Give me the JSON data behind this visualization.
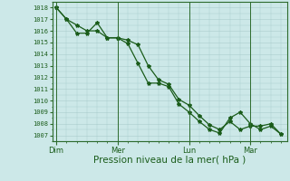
{
  "title": "Pression niveau de la mer( hPa )",
  "ylabel_values": [
    1007,
    1008,
    1009,
    1010,
    1011,
    1012,
    1013,
    1014,
    1015,
    1016,
    1017,
    1018
  ],
  "ylim": [
    1006.5,
    1018.5
  ],
  "background_color": "#cce8e8",
  "grid_color": "#aacccc",
  "line_color": "#1a5c1a",
  "marker_color": "#1a5c1a",
  "xtick_labels": [
    "Dim",
    "Mer",
    "Lun",
    "Mar"
  ],
  "xtick_positions": [
    0,
    3.0,
    6.5,
    9.5
  ],
  "line1_x": [
    0,
    0.5,
    1.0,
    1.5,
    2.0,
    2.5,
    3.0,
    3.5,
    4.0,
    4.5,
    5.0,
    5.5,
    6.0,
    6.5,
    7.0,
    7.5,
    8.0,
    8.5,
    9.0,
    9.5,
    10.0,
    10.5,
    11.0
  ],
  "line1_y": [
    1018,
    1017.0,
    1015.8,
    1015.8,
    1016.7,
    1015.4,
    1015.4,
    1014.9,
    1013.2,
    1011.5,
    1011.5,
    1011.2,
    1009.7,
    1009.0,
    1008.2,
    1007.5,
    1007.2,
    1008.5,
    1009.0,
    1008.0,
    1007.5,
    1007.8,
    1007.1
  ],
  "line2_x": [
    0,
    0.5,
    1.0,
    1.5,
    2.0,
    2.5,
    3.0,
    3.5,
    4.0,
    4.5,
    5.0,
    5.5,
    6.0,
    6.5,
    7.0,
    7.5,
    8.0,
    8.5,
    9.0,
    9.5,
    10.0,
    10.5,
    11.0
  ],
  "line2_y": [
    1018,
    1017.0,
    1016.5,
    1016.0,
    1016.0,
    1015.4,
    1015.4,
    1015.2,
    1014.8,
    1013.0,
    1011.8,
    1011.4,
    1010.1,
    1009.6,
    1008.7,
    1007.9,
    1007.5,
    1008.2,
    1007.5,
    1007.8,
    1007.8,
    1008.0,
    1007.1
  ],
  "vline_positions": [
    0,
    3.0,
    6.5,
    9.5
  ],
  "vline_color": "#2d6b2d",
  "spine_color": "#2d6b2d",
  "tick_label_color": "#1a5c1a",
  "title_color": "#1a5c1a",
  "title_fontsize": 7.5,
  "ytick_fontsize": 5.0,
  "xtick_fontsize": 6.0,
  "linewidth": 0.9,
  "markersize": 3.0
}
